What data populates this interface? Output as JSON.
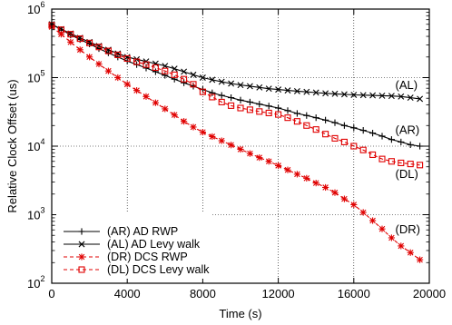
{
  "chart_data": {
    "type": "line",
    "xlabel": "Time (s)",
    "ylabel": "Relative Clock Offset (us)",
    "xlim": [
      0,
      20000
    ],
    "ylim": [
      100,
      1000000
    ],
    "yscale": "log",
    "grid": true,
    "legend_position": "bottom-left",
    "x_ticks": [
      "0",
      "4000",
      "8000",
      "12000",
      "16000",
      "20000"
    ],
    "y_ticks": [
      {
        "base": "10",
        "exp": "2"
      },
      {
        "base": "10",
        "exp": "3"
      },
      {
        "base": "10",
        "exp": "4"
      },
      {
        "base": "10",
        "exp": "5"
      },
      {
        "base": "10",
        "exp": "6"
      }
    ],
    "annotations": [
      {
        "text": "(AL)",
        "x": 18200,
        "y": 80000
      },
      {
        "text": "(AR)",
        "x": 18200,
        "y": 17500
      },
      {
        "text": "(DL)",
        "x": 18200,
        "y": 4000
      },
      {
        "text": "(DR)",
        "x": 18200,
        "y": 620
      }
    ],
    "series": [
      {
        "name": "(AR) AD RWP",
        "color": "#000000",
        "marker": "plus",
        "dashed": false,
        "x": [
          0,
          500,
          1000,
          1500,
          2000,
          2500,
          3000,
          3500,
          4000,
          4500,
          5000,
          5500,
          6000,
          6500,
          7000,
          7500,
          8000,
          8500,
          9000,
          9500,
          10000,
          10500,
          11000,
          11500,
          12000,
          12500,
          13000,
          13500,
          14000,
          14500,
          15000,
          15500,
          16000,
          16500,
          17000,
          17500,
          18000,
          18500,
          19000,
          19500
        ],
        "y": [
          600000,
          500000,
          420000,
          360000,
          310000,
          265000,
          230000,
          200000,
          175000,
          155000,
          138000,
          122000,
          108000,
          95000,
          84000,
          75000,
          67000,
          60000,
          55000,
          51000,
          47000,
          44000,
          41000,
          38500,
          36000,
          33000,
          30000,
          28000,
          26000,
          24000,
          22000,
          20000,
          18500,
          17000,
          15500,
          14000,
          12500,
          11500,
          10500,
          10000
        ]
      },
      {
        "name": "(AL) AD Levy walk",
        "color": "#000000",
        "marker": "x",
        "dashed": false,
        "x": [
          0,
          500,
          1000,
          1500,
          2000,
          2500,
          3000,
          3500,
          4000,
          4500,
          5000,
          5500,
          6000,
          6500,
          7000,
          7500,
          8000,
          8500,
          9000,
          9500,
          10000,
          10500,
          11000,
          11500,
          12000,
          12500,
          13000,
          13500,
          14000,
          14500,
          15000,
          15500,
          16000,
          16500,
          17000,
          17500,
          18000,
          18500,
          19000,
          19500
        ],
        "y": [
          600000,
          510000,
          440000,
          380000,
          330000,
          290000,
          255000,
          225000,
          200000,
          185000,
          172000,
          160000,
          148000,
          135000,
          122000,
          110000,
          100000,
          93000,
          87000,
          82000,
          78000,
          75000,
          72000,
          69000,
          67000,
          65000,
          63500,
          62000,
          60500,
          59000,
          58000,
          57000,
          56000,
          55500,
          55000,
          54500,
          54000,
          53000,
          51000,
          49000
        ]
      },
      {
        "name": "(DR) DCS RWP",
        "color": "#e00000",
        "marker": "asterisk",
        "dashed": true,
        "x": [
          0,
          500,
          1000,
          1500,
          2000,
          2500,
          3000,
          3500,
          4000,
          4500,
          5000,
          5500,
          6000,
          6500,
          7000,
          7500,
          8000,
          8500,
          9000,
          9500,
          10000,
          10500,
          11000,
          11500,
          12000,
          12500,
          13000,
          13500,
          14000,
          14500,
          15000,
          15500,
          16000,
          16500,
          17000,
          17500,
          18000,
          18500,
          19000,
          19500
        ],
        "y": [
          550000,
          430000,
          330000,
          255000,
          200000,
          158000,
          125000,
          100000,
          80000,
          65000,
          53000,
          43000,
          35000,
          28500,
          23000,
          19000,
          16000,
          13800,
          12000,
          10400,
          9000,
          7800,
          6800,
          6000,
          5200,
          4500,
          3900,
          3400,
          2900,
          2500,
          2100,
          1700,
          1400,
          1080,
          820,
          620,
          460,
          350,
          280,
          220
        ]
      },
      {
        "name": "(DL) DCS Levy walk",
        "color": "#e00000",
        "marker": "square",
        "dashed": true,
        "x": [
          0,
          500,
          1000,
          1500,
          2000,
          2500,
          3000,
          3500,
          4000,
          4500,
          5000,
          5500,
          6000,
          6500,
          7000,
          7500,
          8000,
          8500,
          9000,
          9500,
          10000,
          10500,
          11000,
          11500,
          12000,
          12500,
          13000,
          13500,
          14000,
          14500,
          15000,
          15500,
          16000,
          16500,
          17000,
          17500,
          18000,
          18500,
          19000,
          19500
        ],
        "y": [
          580000,
          500000,
          430000,
          370000,
          320000,
          280000,
          245000,
          215000,
          190000,
          170000,
          155000,
          140000,
          125000,
          110000,
          95000,
          80000,
          62000,
          52000,
          44000,
          39000,
          36000,
          34000,
          32000,
          30500,
          29000,
          26000,
          23000,
          20000,
          17500,
          15000,
          13000,
          11500,
          10000,
          8800,
          7500,
          6500,
          6000,
          5700,
          5500,
          5300
        ]
      }
    ]
  }
}
